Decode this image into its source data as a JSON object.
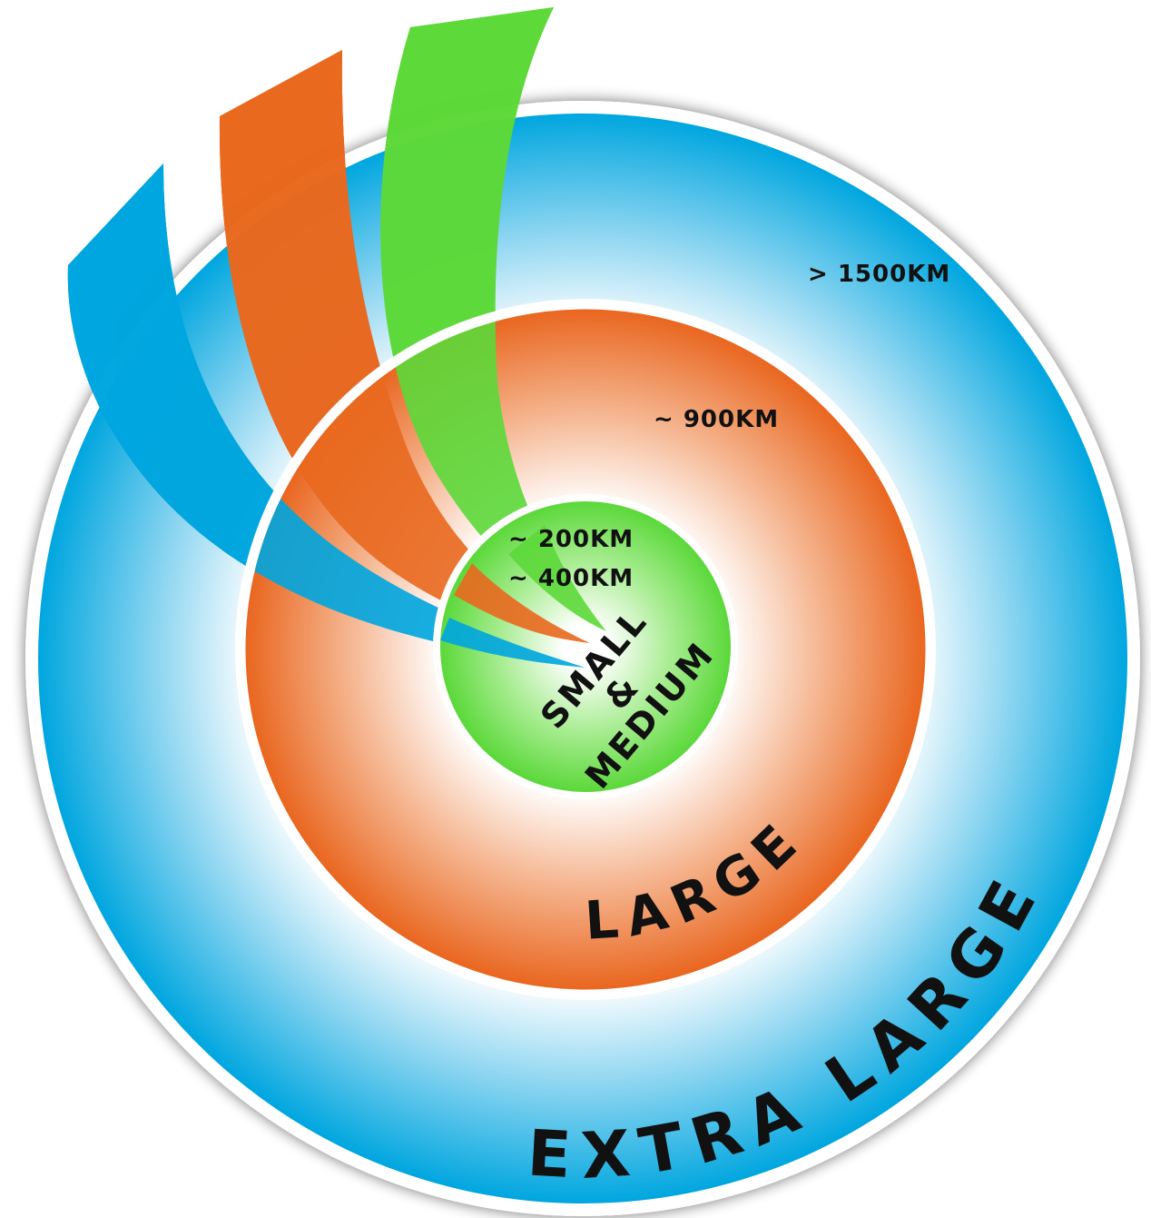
{
  "rings": [
    {
      "label": "EXTRA LARGE",
      "range": "> 1500KM"
    },
    {
      "label": "LARGE",
      "range": "~ 900KM"
    },
    {
      "label_lines": [
        "SMALL",
        "&",
        "MEDIUM"
      ],
      "ranges": [
        "~ 200KM",
        "~ 400KM"
      ]
    }
  ]
}
